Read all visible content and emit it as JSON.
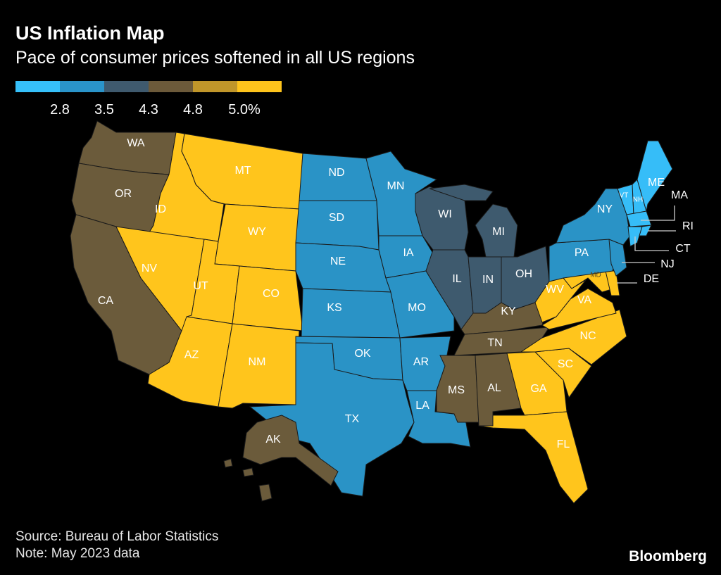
{
  "title": "US Inflation Map",
  "subtitle": "Pace of consumer prices softened in all US regions",
  "legend": {
    "colors": [
      "#36C0FA",
      "#2A94CA",
      "#3F5A6E",
      "#6C5A3A",
      "#C0962A",
      "#FEC41C"
    ],
    "ticks": [
      "2.8",
      "3.5",
      "4.3",
      "4.8",
      "5.0%"
    ]
  },
  "category_colors": {
    "c1": "#36BDF8",
    "c2": "#2A93C6",
    "c3": "#3E5A6E",
    "c4": "#6B5B3B",
    "c5": "#FFC51C"
  },
  "states": {
    "WA": "c4",
    "OR": "c4",
    "CA": "c4",
    "AK": "c4",
    "HI": "c4",
    "ID": "c5",
    "MT": "c5",
    "WY": "c5",
    "NV": "c5",
    "UT": "c5",
    "CO": "c5",
    "AZ": "c5",
    "NM": "c5",
    "ND": "c2",
    "SD": "c2",
    "NE": "c2",
    "KS": "c2",
    "OK": "c2",
    "TX": "c2",
    "MN": "c2",
    "IA": "c2",
    "MO": "c2",
    "AR": "c2",
    "LA": "c2",
    "WI": "c3",
    "MI": "c3",
    "IL": "c3",
    "IN": "c3",
    "OH": "c3",
    "KY": "c4",
    "TN": "c4",
    "MS": "c4",
    "AL": "c4",
    "GA": "c5",
    "FL": "c5",
    "SC": "c5",
    "NC": "c5",
    "VA": "c5",
    "WV": "c5",
    "MD": "c5",
    "DE": "c5",
    "PA": "c2",
    "NY": "c2",
    "NJ": "c2",
    "VT": "c1",
    "NH": "c1",
    "ME": "c1",
    "MA": "c1",
    "CT": "c1",
    "RI": "c1"
  },
  "source": "Source: Bureau of Labor Statistics",
  "note": "Note: May 2023 data",
  "brand": "Bloomberg"
}
